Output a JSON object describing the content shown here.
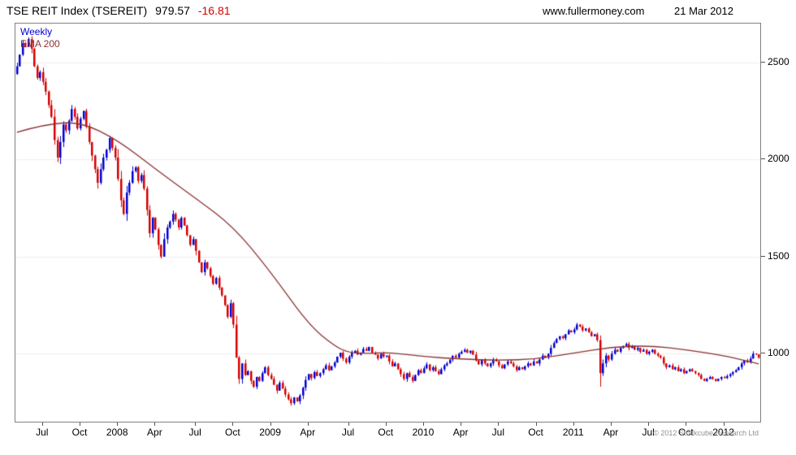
{
  "header": {
    "title": "TSE REIT Index (TSEREIT)",
    "last_price": "979.57",
    "change": "-16.81",
    "website": "www.fullermoney.com",
    "date": "21 Mar 2012"
  },
  "legend": {
    "timeframe": "Weekly",
    "overlay": "EMA 200"
  },
  "footer": {
    "copyright": "© 2012 Stockcube Research Ltd"
  },
  "colors": {
    "up": "#0000d2",
    "down": "#d40000",
    "ema": "#8b3232",
    "grid": "#ececec",
    "border": "#808080",
    "weekly_label": "#0000cc",
    "change_negative": "#d40000"
  },
  "chart_data": {
    "type": "candlestick",
    "timeframe": "weekly",
    "title": "TSE REIT Index (TSEREIT)",
    "start": "2007-05",
    "end": "2012-03",
    "last_close": 979.57,
    "change": -16.81,
    "ylim": [
      650,
      2700
    ],
    "y_ticks": [
      1000,
      1500,
      2000,
      2500
    ],
    "x_ticks": [
      {
        "label": "Jul",
        "week": 9
      },
      {
        "label": "Oct",
        "week": 22
      },
      {
        "label": "2008",
        "week": 35
      },
      {
        "label": "Apr",
        "week": 48
      },
      {
        "label": "Jul",
        "week": 62
      },
      {
        "label": "Oct",
        "week": 75
      },
      {
        "label": "2009",
        "week": 88
      },
      {
        "label": "Apr",
        "week": 101
      },
      {
        "label": "Jul",
        "week": 115
      },
      {
        "label": "Oct",
        "week": 128
      },
      {
        "label": "2010",
        "week": 141
      },
      {
        "label": "Apr",
        "week": 154
      },
      {
        "label": "Jul",
        "week": 167
      },
      {
        "label": "Oct",
        "week": 180
      },
      {
        "label": "2011",
        "week": 193
      },
      {
        "label": "Apr",
        "week": 206
      },
      {
        "label": "Jul",
        "week": 219
      },
      {
        "label": "Oct",
        "week": 232
      },
      {
        "label": "2012",
        "week": 245
      }
    ],
    "first_open": 2440,
    "closes": [
      2480,
      2540,
      2600,
      2580,
      2620,
      2570,
      2480,
      2420,
      2450,
      2400,
      2350,
      2280,
      2220,
      2100,
      2010,
      2090,
      2180,
      2150,
      2200,
      2260,
      2220,
      2160,
      2210,
      2250,
      2170,
      2090,
      2020,
      1950,
      1880,
      1950,
      2010,
      2050,
      2110,
      2060,
      2010,
      1900,
      1790,
      1720,
      1830,
      1880,
      1940,
      1960,
      1890,
      1920,
      1850,
      1740,
      1620,
      1700,
      1640,
      1560,
      1500,
      1590,
      1650,
      1680,
      1720,
      1690,
      1650,
      1700,
      1660,
      1610,
      1560,
      1590,
      1530,
      1470,
      1420,
      1470,
      1440,
      1400,
      1360,
      1390,
      1340,
      1300,
      1250,
      1190,
      1260,
      1150,
      980,
      870,
      950,
      890,
      910,
      860,
      830,
      880,
      860,
      900,
      930,
      890,
      870,
      840,
      810,
      850,
      820,
      790,
      765,
      745,
      775,
      755,
      785,
      825,
      865,
      895,
      875,
      905,
      885,
      900,
      920,
      940,
      915,
      935,
      955,
      985,
      1005,
      975,
      955,
      985,
      1005,
      1015,
      995,
      1005,
      1025,
      1015,
      1035,
      1005,
      995,
      975,
      1000,
      985,
      990,
      960,
      935,
      950,
      920,
      895,
      870,
      900,
      880,
      860,
      890,
      915,
      900,
      925,
      945,
      915,
      930,
      910,
      895,
      920,
      940,
      950,
      970,
      990,
      980,
      1000,
      1010,
      1020,
      1005,
      1015,
      995,
      965,
      945,
      970,
      950,
      935,
      950,
      970,
      960,
      940,
      925,
      945,
      960,
      950,
      935,
      915,
      930,
      920,
      935,
      950,
      940,
      960,
      950,
      970,
      990,
      980,
      1000,
      1030,
      1055,
      1075,
      1090,
      1080,
      1100,
      1120,
      1110,
      1125,
      1150,
      1140,
      1120,
      1130,
      1110,
      1090,
      1100,
      1070,
      900,
      950,
      990,
      970,
      1000,
      1020,
      1010,
      1030,
      1040,
      1050,
      1030,
      1040,
      1020,
      1030,
      1010,
      1020,
      1000,
      1010,
      1020,
      1000,
      990,
      980,
      950,
      930,
      940,
      920,
      930,
      910,
      920,
      900,
      910,
      920,
      910,
      900,
      890,
      870,
      860,
      870,
      880,
      870,
      860,
      870,
      880,
      875,
      885,
      895,
      905,
      915,
      930,
      950,
      965,
      955,
      975,
      1000,
      996.38,
      979.57
    ],
    "anomalies": [
      {
        "week": 202,
        "low": 830
      }
    ],
    "ema_anchors": [
      [
        0,
        2140
      ],
      [
        9,
        2180
      ],
      [
        22,
        2195
      ],
      [
        35,
        2100
      ],
      [
        48,
        1950
      ],
      [
        62,
        1800
      ],
      [
        75,
        1655
      ],
      [
        88,
        1420
      ],
      [
        101,
        1150
      ],
      [
        110,
        1040
      ],
      [
        115,
        1005
      ],
      [
        122,
        1000
      ],
      [
        128,
        1008
      ],
      [
        141,
        985
      ],
      [
        154,
        972
      ],
      [
        167,
        966
      ],
      [
        180,
        972
      ],
      [
        193,
        1004
      ],
      [
        206,
        1034
      ],
      [
        219,
        1042
      ],
      [
        232,
        1020
      ],
      [
        245,
        990
      ],
      [
        252,
        965
      ],
      [
        257,
        948
      ]
    ]
  }
}
